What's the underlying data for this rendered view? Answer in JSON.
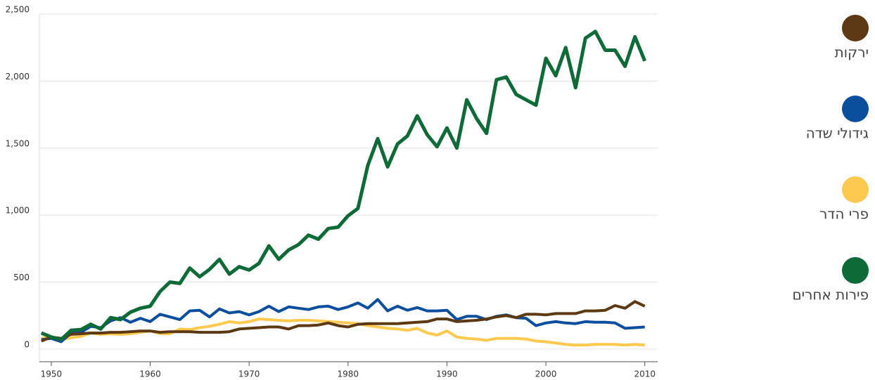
{
  "chart_data": {
    "type": "line",
    "x": [
      1949,
      1950,
      1951,
      1952,
      1953,
      1954,
      1955,
      1956,
      1957,
      1958,
      1959,
      1960,
      1961,
      1962,
      1963,
      1964,
      1965,
      1966,
      1967,
      1968,
      1969,
      1970,
      1971,
      1972,
      1973,
      1974,
      1975,
      1976,
      1977,
      1978,
      1979,
      1980,
      1981,
      1982,
      1983,
      1984,
      1985,
      1986,
      1987,
      1988,
      1989,
      1990,
      1991,
      1992,
      1993,
      1994,
      1995,
      1996,
      1997,
      1998,
      1999,
      2000,
      2001,
      2002,
      2003,
      2004,
      2005,
      2006,
      2007,
      2008,
      2009,
      2010
    ],
    "series": [
      {
        "name": "ירקות",
        "color": "#5c3813",
        "values": [
          60,
          90,
          80,
          110,
          115,
          120,
          120,
          125,
          125,
          130,
          135,
          135,
          125,
          130,
          130,
          130,
          125,
          125,
          125,
          130,
          150,
          155,
          160,
          165,
          165,
          150,
          175,
          175,
          180,
          195,
          175,
          165,
          185,
          190,
          190,
          190,
          190,
          195,
          200,
          205,
          225,
          225,
          205,
          210,
          215,
          225,
          240,
          250,
          235,
          260,
          260,
          255,
          265,
          265,
          265,
          285,
          285,
          290,
          325,
          305,
          355,
          320
        ]
      },
      {
        "name": "גידולי שדה",
        "color": "#0b4e9e",
        "values": [
          70,
          80,
          55,
          120,
          125,
          170,
          160,
          210,
          235,
          200,
          230,
          205,
          260,
          240,
          220,
          285,
          290,
          240,
          300,
          270,
          280,
          255,
          280,
          320,
          280,
          315,
          305,
          295,
          315,
          320,
          295,
          315,
          345,
          305,
          370,
          285,
          320,
          290,
          310,
          285,
          285,
          290,
          220,
          245,
          245,
          220,
          245,
          255,
          235,
          230,
          175,
          195,
          205,
          195,
          190,
          205,
          200,
          200,
          195,
          155,
          160,
          165
        ]
      },
      {
        "name": "פרי הדר",
        "color": "#fdc94f",
        "values": [
          80,
          90,
          70,
          85,
          95,
          120,
          110,
          115,
          110,
          115,
          125,
          135,
          115,
          115,
          150,
          145,
          160,
          170,
          185,
          205,
          195,
          205,
          225,
          220,
          215,
          210,
          215,
          215,
          210,
          205,
          200,
          195,
          190,
          175,
          165,
          155,
          150,
          140,
          155,
          120,
          105,
          135,
          90,
          80,
          75,
          65,
          80,
          80,
          80,
          75,
          60,
          55,
          45,
          35,
          30,
          30,
          35,
          35,
          35,
          30,
          35,
          30
        ]
      },
      {
        "name": "פירות אחרים",
        "color": "#0e6b37",
        "values": [
          120,
          90,
          70,
          140,
          145,
          185,
          150,
          235,
          220,
          275,
          305,
          320,
          430,
          500,
          490,
          605,
          540,
          595,
          670,
          560,
          615,
          590,
          640,
          770,
          670,
          740,
          780,
          850,
          820,
          900,
          910,
          995,
          1050,
          1370,
          1570,
          1360,
          1530,
          1590,
          1740,
          1600,
          1510,
          1650,
          1500,
          1860,
          1720,
          1610,
          2010,
          2030,
          1900,
          1860,
          1820,
          2170,
          2040,
          2250,
          1950,
          2320,
          2370,
          2230,
          2230,
          2110,
          2330,
          2150
        ]
      }
    ],
    "xlim": [
      1948.8,
      2011.3
    ],
    "xticks": [
      1950,
      1960,
      1970,
      1980,
      1990,
      2000,
      2010
    ],
    "ylim": [
      0,
      2500
    ],
    "yticks": [
      0,
      500,
      {
        "value": 1000,
        "label": "1,000"
      },
      {
        "value": 1500,
        "label": "1,500"
      },
      {
        "value": 2000,
        "label": "2,000"
      },
      {
        "value": 2500,
        "label": "2,500"
      }
    ],
    "grid": true,
    "legend": "right"
  }
}
